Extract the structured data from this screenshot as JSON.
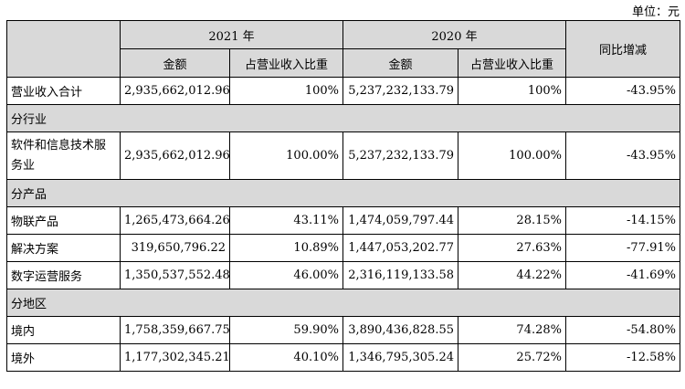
{
  "unit_label": "单位：元",
  "header": {
    "year_2021": "2021 年",
    "year_2020": "2020 年",
    "amount": "金额",
    "ratio": "占营业收入比重",
    "yoy": "同比增减"
  },
  "rows": [
    {
      "type": "data",
      "label": "营业收入合计",
      "a2021": "2,935,662,012.96",
      "r2021": "100%",
      "a2020": "5,237,232,133.79",
      "r2020": "100%",
      "yoy": "-43.95%"
    },
    {
      "type": "section",
      "label": "分行业"
    },
    {
      "type": "data",
      "label": "软件和信息技术服务业",
      "a2021": "2,935,662,012.96",
      "r2021": "100.00%",
      "a2020": "5,237,232,133.79",
      "r2020": "100.00%",
      "yoy": "-43.95%",
      "tall": true
    },
    {
      "type": "section",
      "label": "分产品"
    },
    {
      "type": "data",
      "label": "物联产品",
      "a2021": "1,265,473,664.26",
      "r2021": "43.11%",
      "a2020": "1,474,059,797.44",
      "r2020": "28.15%",
      "yoy": "-14.15%"
    },
    {
      "type": "data",
      "label": "解决方案",
      "a2021": "319,650,796.22",
      "r2021": "10.89%",
      "a2020": "1,447,053,202.77",
      "r2020": "27.63%",
      "yoy": "-77.91%"
    },
    {
      "type": "data",
      "label": "数字运营服务",
      "a2021": "1,350,537,552.48",
      "r2021": "46.00%",
      "a2020": "2,316,119,133.58",
      "r2020": "44.22%",
      "yoy": "-41.69%"
    },
    {
      "type": "section",
      "label": "分地区"
    },
    {
      "type": "data",
      "label": "境内",
      "a2021": "1,758,359,667.75",
      "r2021": "59.90%",
      "a2020": "3,890,436,828.55",
      "r2020": "74.28%",
      "yoy": "-54.80%"
    },
    {
      "type": "data",
      "label": "境外",
      "a2021": "1,177,302,345.21",
      "r2021": "40.10%",
      "a2020": "1,346,795,305.24",
      "r2020": "25.72%",
      "yoy": "-12.58%"
    }
  ]
}
